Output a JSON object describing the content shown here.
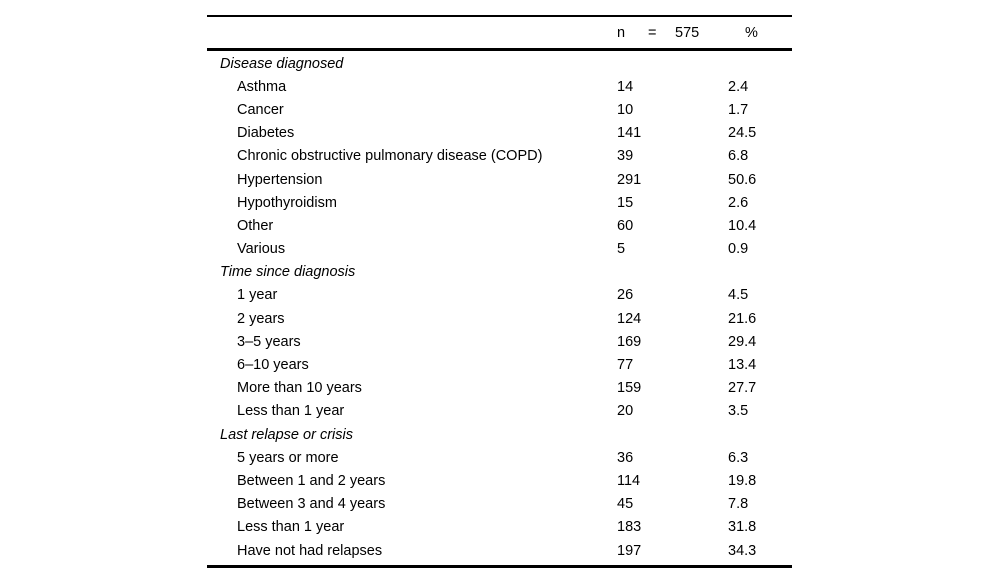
{
  "chart_data": {
    "type": "table",
    "header": {
      "n_label": "n",
      "equals": "=",
      "total": "575",
      "percent_label": "%"
    },
    "sections": [
      {
        "label": "Disease diagnosed",
        "rows": [
          {
            "label": "Asthma",
            "n": "14",
            "pct": "2.4"
          },
          {
            "label": "Cancer",
            "n": "10",
            "pct": "1.7"
          },
          {
            "label": "Diabetes",
            "n": "141",
            "pct": "24.5"
          },
          {
            "label": "Chronic obstructive pulmonary disease (COPD)",
            "n": "39",
            "pct": "6.8"
          },
          {
            "label": "Hypertension",
            "n": "291",
            "pct": "50.6"
          },
          {
            "label": "Hypothyroidism",
            "n": "15",
            "pct": "2.6"
          },
          {
            "label": "Other",
            "n": "60",
            "pct": "10.4"
          },
          {
            "label": "Various",
            "n": "5",
            "pct": "0.9"
          }
        ]
      },
      {
        "label": "Time since diagnosis",
        "rows": [
          {
            "label": "1 year",
            "n": "26",
            "pct": "4.5"
          },
          {
            "label": "2 years",
            "n": "124",
            "pct": "21.6"
          },
          {
            "label": "3–5 years",
            "n": "169",
            "pct": "29.4"
          },
          {
            "label": "6–10 years",
            "n": "77",
            "pct": "13.4"
          },
          {
            "label": "More than 10 years",
            "n": "159",
            "pct": "27.7"
          },
          {
            "label": "Less than 1 year",
            "n": "20",
            "pct": "3.5"
          }
        ]
      },
      {
        "label": "Last relapse or crisis",
        "rows": [
          {
            "label": "5 years or more",
            "n": "36",
            "pct": "6.3"
          },
          {
            "label": "Between 1 and 2 years",
            "n": "114",
            "pct": "19.8"
          },
          {
            "label": "Between 3 and 4 years",
            "n": "45",
            "pct": "7.8"
          },
          {
            "label": "Less than 1 year",
            "n": "183",
            "pct": "31.8"
          },
          {
            "label": "Have not had relapses",
            "n": "197",
            "pct": "34.3"
          }
        ]
      }
    ]
  }
}
